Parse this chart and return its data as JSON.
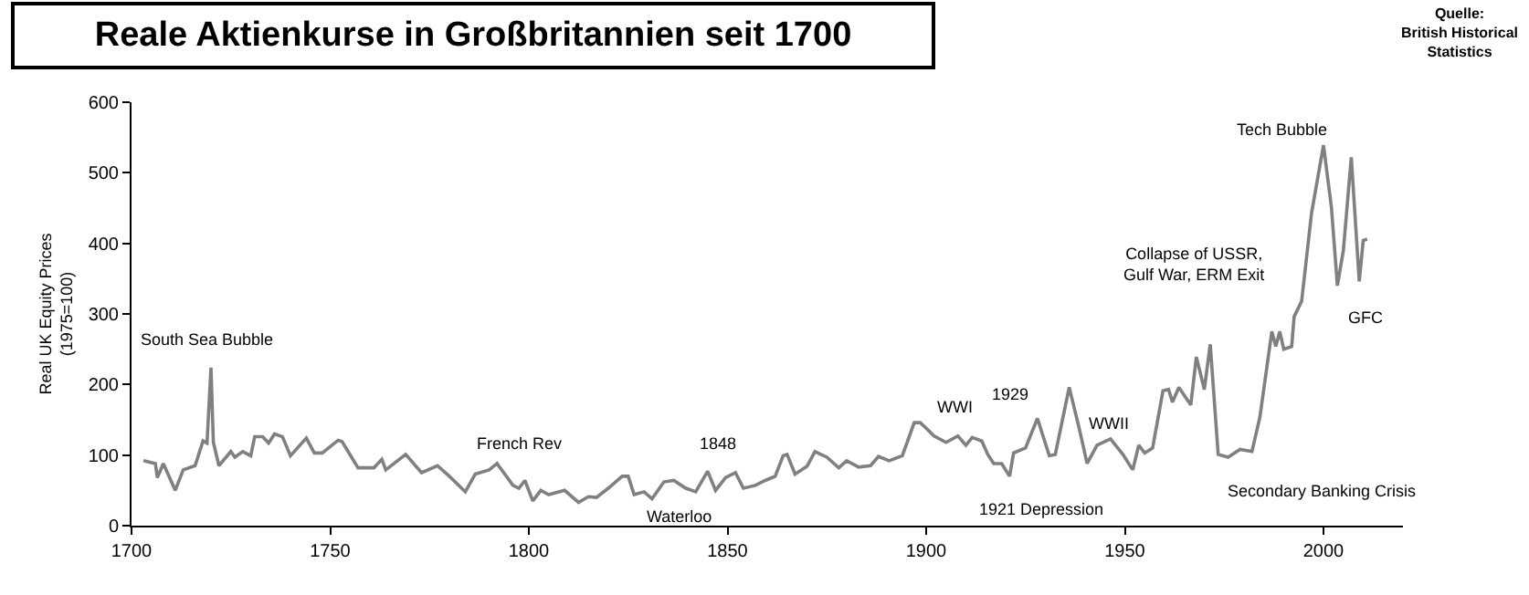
{
  "chart_data": {
    "type": "line",
    "title": "Reale Aktienkurse in Großbritannien seit 1700",
    "ylabel": "Real UK Equity Prices\n(1975=100)",
    "x": [
      1703,
      1706,
      1706.5,
      1708,
      1711,
      1713,
      1716,
      1718,
      1719,
      1720,
      1720.6,
      1722,
      1725,
      1726,
      1728,
      1730,
      1731,
      1733,
      1734.5,
      1736,
      1738,
      1740,
      1744,
      1746,
      1748,
      1752,
      1753,
      1757,
      1761,
      1763,
      1764,
      1769,
      1773,
      1777,
      1780,
      1784,
      1786.5,
      1790,
      1792,
      1796,
      1797.5,
      1799,
      1801,
      1803,
      1805,
      1809,
      1812.5,
      1815,
      1817,
      1820,
      1823.5,
      1825,
      1826.5,
      1829,
      1831,
      1834,
      1836.5,
      1839.5,
      1842,
      1845,
      1847,
      1849.5,
      1852,
      1854,
      1857,
      1859.5,
      1862,
      1864,
      1865,
      1867,
      1870,
      1872,
      1875,
      1878,
      1880,
      1883,
      1886,
      1888,
      1890.7,
      1894,
      1897,
      1898.5,
      1900,
      1902,
      1905,
      1908,
      1910,
      1911.6,
      1914,
      1915.5,
      1917,
      1919,
      1921,
      1922,
      1925,
      1928,
      1931,
      1932.5,
      1936,
      1938.6,
      1940.5,
      1943,
      1946.4,
      1949.5,
      1952,
      1953.5,
      1955,
      1957,
      1959.6,
      1961,
      1962,
      1963.6,
      1966.6,
      1968,
      1970,
      1971.5,
      1973.5,
      1976,
      1979,
      1982,
      1984,
      1987,
      1988,
      1989,
      1990,
      1992,
      1992.6,
      1994.5,
      1997,
      2000,
      2002,
      2003.5,
      2005,
      2007,
      2009,
      2010,
      2011
    ],
    "series": [
      {
        "color": "#808080",
        "values": [
          92,
          88,
          68,
          88,
          50,
          79,
          85,
          120,
          117,
          224,
          118,
          85,
          105,
          97,
          105,
          99,
          126,
          126,
          117,
          130,
          126,
          99,
          124,
          103,
          103,
          121,
          119,
          82,
          82,
          94,
          79,
          101,
          75,
          85,
          70,
          48,
          73,
          79,
          88,
          57,
          53,
          64,
          35,
          50,
          44,
          50,
          33,
          41,
          40,
          53,
          70,
          70,
          44,
          48,
          38,
          62,
          64,
          53,
          48,
          77,
          50,
          68,
          75,
          53,
          57,
          64,
          70,
          99,
          101,
          73,
          84,
          105,
          97,
          82,
          92,
          83,
          85,
          98,
          92,
          99,
          146,
          146,
          138,
          127,
          118,
          127,
          114,
          125,
          120,
          101,
          88,
          88,
          70,
          103,
          110,
          152,
          99,
          101,
          196,
          136,
          88,
          114,
          123,
          101,
          79,
          114,
          103,
          110,
          191,
          193,
          175,
          196,
          171,
          239,
          193,
          257,
          101,
          97,
          108,
          105,
          154,
          275,
          254,
          275,
          250,
          254,
          296,
          318,
          443,
          539,
          451,
          340,
          390,
          522,
          346,
          404,
          406
        ]
      }
    ],
    "xlim": [
      1700,
      2020
    ],
    "xticks": [
      1700,
      1750,
      1800,
      1850,
      1900,
      1950,
      2000
    ],
    "ylim": [
      0,
      600
    ],
    "yticks": [
      0,
      100,
      200,
      300,
      400,
      500,
      600
    ],
    "annotations": [
      "Quelle:\nBritish Historical\nStatistics",
      "South Sea Bubble",
      "French Rev",
      "Waterloo",
      "1848",
      "WWI",
      "1929",
      "WWII",
      "1921 Depression",
      "Collapse of USSR,\nGulf War, ERM Exit",
      "Secondary Banking Crisis",
      "Tech Bubble",
      "GFC"
    ]
  }
}
